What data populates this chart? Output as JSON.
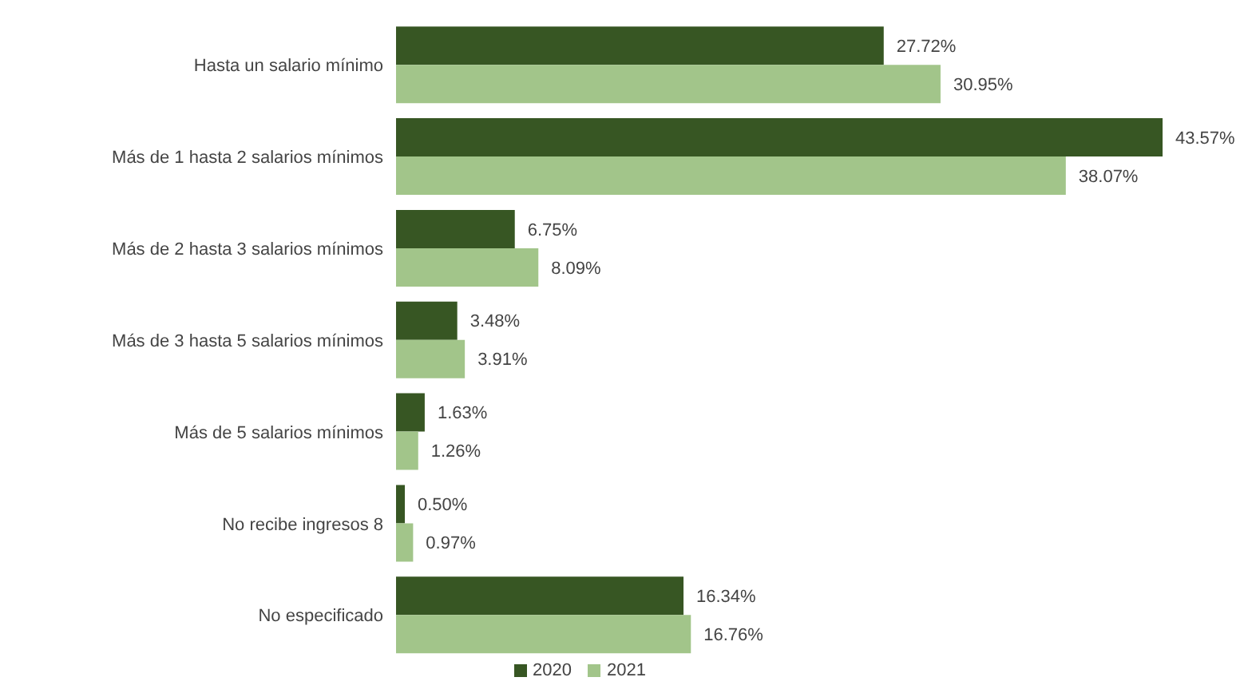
{
  "chart_data": {
    "type": "bar",
    "orientation": "horizontal",
    "categories": [
      "Hasta un salario mínimo",
      "Más de 1 hasta 2 salarios mínimos",
      "Más de 2 hasta 3 salarios mínimos",
      "Más de 3 hasta 5 salarios mínimos",
      "Más de 5 salarios mínimos",
      "No recibe ingresos 8",
      "No especificado"
    ],
    "series": [
      {
        "name": "2020",
        "color": "#375623",
        "values": [
          27.72,
          43.57,
          6.75,
          3.48,
          1.63,
          0.5,
          16.34
        ],
        "value_labels": [
          "27.72%",
          "43.57%",
          "6.75%",
          "3.48%",
          "1.63%",
          "0.50%",
          "16.34%"
        ]
      },
      {
        "name": "2021",
        "color": "#a2c58a",
        "values": [
          30.95,
          38.07,
          8.09,
          3.91,
          1.26,
          0.97,
          16.76
        ],
        "value_labels": [
          "30.95%",
          "38.07%",
          "8.09%",
          "3.91%",
          "1.26%",
          "0.97%",
          "16.76%"
        ]
      }
    ],
    "legend": "bottom"
  }
}
